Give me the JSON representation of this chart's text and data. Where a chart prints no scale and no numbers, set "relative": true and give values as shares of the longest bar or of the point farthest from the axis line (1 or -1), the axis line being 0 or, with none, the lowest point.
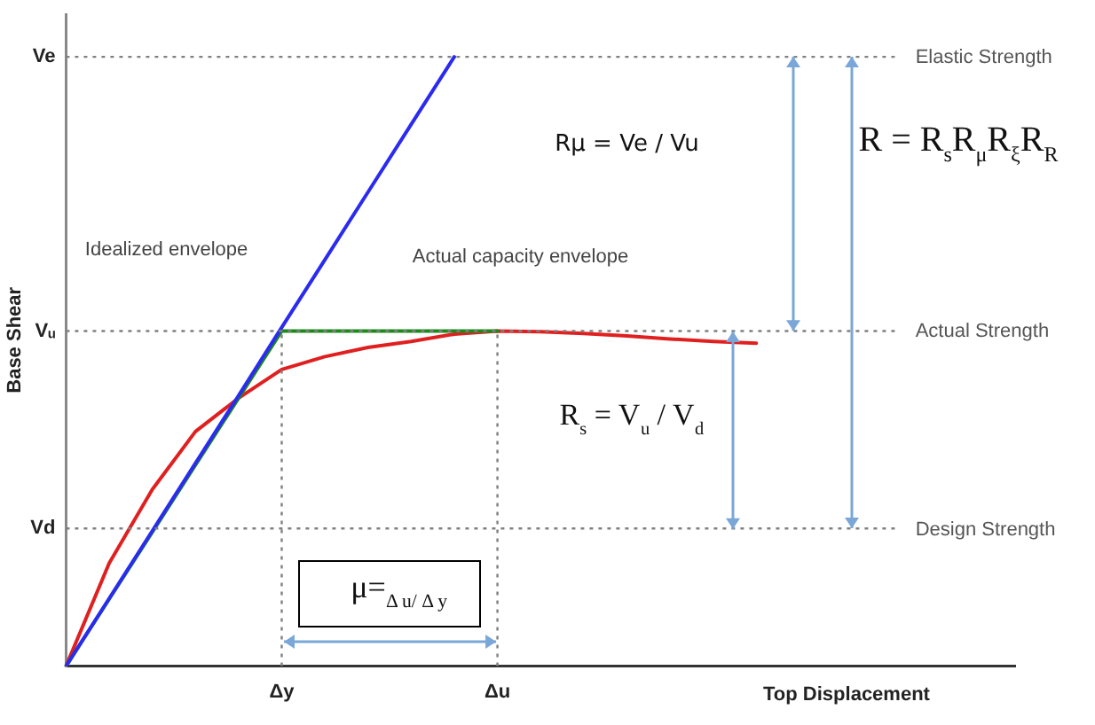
{
  "chart_data": {
    "type": "line",
    "relative": true,
    "ylabel": "Base Shear",
    "xlabel": "Top Displacement",
    "marker": "none",
    "line_style": "solid",
    "categories": [
      null,
      null,
      null,
      null,
      null,
      "Δy",
      null,
      null,
      null,
      null,
      "Δu",
      null,
      null,
      null,
      null,
      null,
      null,
      null,
      null,
      null,
      null,
      null,
      null
    ],
    "series": [
      {
        "color": "#2b2bf0",
        "values": [
          0,
          0.111,
          0.222,
          0.333,
          0.444,
          0.556,
          0.667,
          0.778,
          0.889,
          1,
          null,
          null,
          null,
          null,
          null,
          null,
          null,
          null,
          null,
          null,
          null,
          null,
          null
        ]
      },
      {
        "color": "#1a8a1a",
        "values": [
          0,
          0.11,
          0.22,
          0.33,
          0.44,
          0.55,
          0.55,
          0.55,
          0.55,
          0.55,
          0.55,
          null,
          null,
          null,
          null,
          null,
          null,
          null,
          null,
          null,
          null,
          null,
          null
        ]
      },
      {
        "color": "#e02020",
        "values": [
          0,
          0.169,
          0.29,
          0.385,
          0.44,
          0.487,
          0.508,
          0.523,
          0.533,
          0.545,
          0.55,
          0.549,
          0.546,
          0.542,
          0.537,
          0.533,
          0.53,
          null,
          null,
          null,
          null,
          null,
          null
        ]
      }
    ],
    "ref_lines": [
      {
        "axis": "y",
        "value": 1,
        "label": "Ve",
        "color": "#808080",
        "line_style": "dotted"
      },
      {
        "axis": "y",
        "value": 0.55,
        "label": "Vᵤ",
        "color": "#808080",
        "line_style": "dotted"
      },
      {
        "axis": "y",
        "value": 0.226,
        "label": "Vd",
        "color": "#808080",
        "line_style": "dotted"
      },
      {
        "axis": "x",
        "value": "Δy",
        "color": "#808080",
        "line_style": "dotted"
      },
      {
        "axis": "x",
        "value": "Δu",
        "color": "#808080",
        "line_style": "dotted"
      }
    ],
    "annotations": [
      "Idealized envelope",
      "Actual capacity envelope",
      "Rμ = Ve / Vu",
      "R = R$_{s}$R$_{μ}$R$_{ξ}$R$_{R}$",
      "R$_{s}$ = V$_{u}$ / V$_{d}$",
      "μ=$_{Δ u/ Δ y}$",
      "Elastic Strength",
      "Actual Strength",
      "Design Strength"
    ]
  }
}
